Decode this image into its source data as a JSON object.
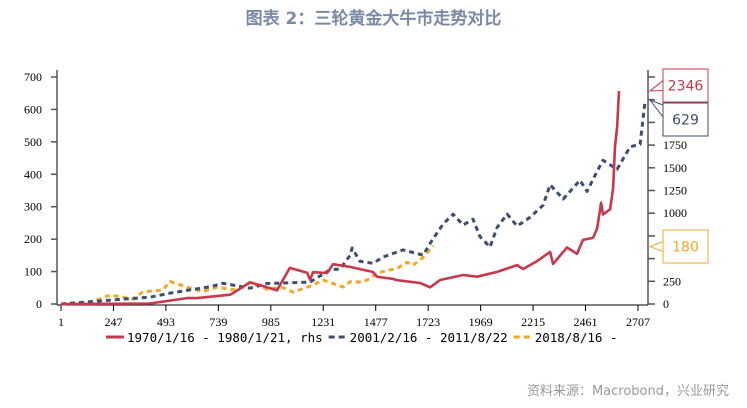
{
  "title": "图表 2：三轮黄金大牛市走势对比",
  "source": "资料来源：Macrobond，兴业研究",
  "chart_data": {
    "type": "line",
    "title": "图表 2：三轮黄金大牛市走势对比",
    "xlabel": "",
    "ylabel": "",
    "x_ticks": [
      1,
      247,
      493,
      739,
      985,
      1231,
      1477,
      1723,
      1969,
      2215,
      2461,
      2707
    ],
    "xlim": [
      -15,
      2754
    ],
    "y_left": {
      "ylim": [
        0,
        700
      ],
      "ticks": [
        0,
        100,
        200,
        300,
        400,
        500,
        600,
        700
      ]
    },
    "y_right": {
      "ylim": [
        0,
        2550
      ],
      "ticks": [
        0,
        250,
        500,
        750,
        1000,
        1250,
        1500,
        1750,
        2000,
        2250,
        2500
      ],
      "tick_labels_visible": [
        "0",
        "250",
        "",
        "",
        "1000",
        "1250",
        "1500",
        "1750",
        "",
        "",
        ""
      ]
    },
    "grid": false,
    "legend_position": "bottom",
    "series": [
      {
        "name": "1970/1/16 - 1980/1/21, rhs",
        "axis": "right",
        "color": "#c8384b",
        "style": "solid",
        "end_label": "2346",
        "x": [
          1,
          418,
          592,
          639,
          794,
          817,
          887,
          948,
          1014,
          1074,
          1108,
          1155,
          1169,
          1183,
          1249,
          1277,
          1357,
          1464,
          1483,
          1558,
          1577,
          1685,
          1732,
          1779,
          1887,
          1952,
          2046,
          2140,
          2168,
          2234,
          2295,
          2309,
          2374,
          2421,
          2449,
          2496,
          2515,
          2534,
          2543,
          2576,
          2590,
          2599,
          2609,
          2618
        ],
        "y": [
          0,
          11,
          55,
          78,
          89,
          144,
          233,
          199,
          155,
          388,
          388,
          332,
          277,
          343,
          343,
          443,
          399,
          365,
          288,
          288,
          255,
          233,
          188,
          255,
          332,
          288,
          365,
          421,
          388,
          476,
          565,
          454,
          609,
          565,
          698,
          731,
          831,
          1107,
          997,
          1030,
          1285,
          1728,
          1949,
          2346
        ]
      },
      {
        "name": "2001/2/16 - 2011/8/22",
        "axis": "left",
        "color": "#3d4e6e",
        "style": "dashed",
        "end_label": "629",
        "x": [
          1,
          264,
          418,
          512,
          606,
          700,
          761,
          887,
          967,
          1042,
          1169,
          1263,
          1310,
          1357,
          1366,
          1403,
          1464,
          1511,
          1605,
          1699,
          1732,
          1793,
          1840,
          1887,
          1933,
          1966,
          2013,
          2046,
          2093,
          2140,
          2201,
          2262,
          2295,
          2356,
          2435,
          2468,
          2515,
          2543,
          2609,
          2670,
          2717,
          2741
        ],
        "y": [
          0,
          15,
          18,
          37,
          40,
          56,
          62,
          49,
          65,
          62,
          71,
          102,
          111,
          148,
          173,
          133,
          123,
          148,
          163,
          154,
          185,
          247,
          278,
          241,
          265,
          204,
          179,
          234,
          278,
          241,
          265,
          308,
          364,
          327,
          379,
          348,
          410,
          441,
          419,
          481,
          496,
          629
        ]
      },
      {
        "name": "2018/8/16 -",
        "axis": "left",
        "color": "#f5a623",
        "style": "dashed",
        "end_label": "180",
        "x": [
          1,
          137,
          231,
          339,
          386,
          479,
          512,
          606,
          667,
          733,
          826,
          887,
          967,
          1042,
          1089,
          1169,
          1230,
          1324,
          1357,
          1418,
          1450,
          1483,
          1577,
          1624,
          1652,
          1699,
          1746
        ],
        "y": [
          0,
          6,
          25,
          19,
          34,
          46,
          68,
          49,
          40,
          49,
          46,
          62,
          49,
          49,
          37,
          56,
          71,
          56,
          65,
          71,
          77,
          96,
          111,
          126,
          123,
          139,
          180
        ]
      }
    ]
  }
}
